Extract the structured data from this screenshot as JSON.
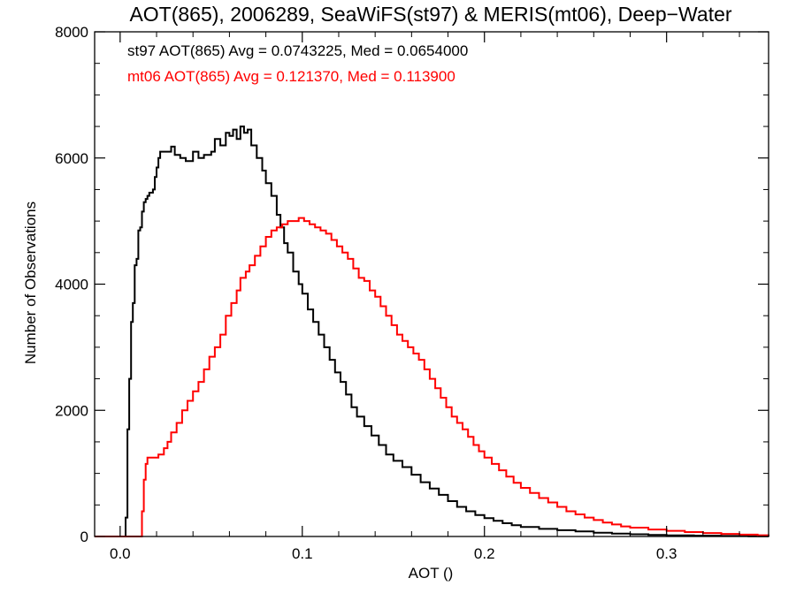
{
  "chart_data": {
    "type": "line",
    "title": "AOT(865), 2006289, SeaWiFS(st97) & MERIS(mt06), Deep−Water",
    "xlabel": "AOT ()",
    "ylabel": "Number of Observations",
    "xlim": [
      -0.014,
      0.356
    ],
    "ylim": [
      0,
      8000
    ],
    "grid": false,
    "xticks": [
      {
        "value": 0.0,
        "label": "0.0"
      },
      {
        "value": 0.1,
        "label": "0.1"
      },
      {
        "value": 0.2,
        "label": "0.2"
      },
      {
        "value": 0.3,
        "label": "0.3"
      }
    ],
    "yticks": [
      {
        "value": 0,
        "label": "0"
      },
      {
        "value": 2000,
        "label": "2000"
      },
      {
        "value": 4000,
        "label": "4000"
      },
      {
        "value": 6000,
        "label": "6000"
      },
      {
        "value": 8000,
        "label": "8000"
      }
    ],
    "annotations": [
      {
        "text": "st97 AOT(865) Avg = 0.0743225, Med = 0.0654000",
        "color": "#000000"
      },
      {
        "text": "mt06 AOT(865) Avg = 0.121370, Med = 0.113900",
        "color": "#ff0000"
      }
    ],
    "series": [
      {
        "color": "#000000",
        "style": "step",
        "points": [
          [
            -0.014,
            0
          ],
          [
            0.002,
            0
          ],
          [
            0.003,
            300
          ],
          [
            0.004,
            1700
          ],
          [
            0.005,
            2500
          ],
          [
            0.006,
            3400
          ],
          [
            0.007,
            3700
          ],
          [
            0.008,
            4300
          ],
          [
            0.009,
            4400
          ],
          [
            0.01,
            4850
          ],
          [
            0.011,
            4900
          ],
          [
            0.012,
            5150
          ],
          [
            0.013,
            5300
          ],
          [
            0.014,
            5350
          ],
          [
            0.015,
            5400
          ],
          [
            0.016,
            5450
          ],
          [
            0.018,
            5500
          ],
          [
            0.019,
            5700
          ],
          [
            0.02,
            5850
          ],
          [
            0.021,
            6000
          ],
          [
            0.022,
            6100
          ],
          [
            0.025,
            6100
          ],
          [
            0.028,
            6180
          ],
          [
            0.03,
            6050
          ],
          [
            0.033,
            6000
          ],
          [
            0.036,
            5950
          ],
          [
            0.04,
            6100
          ],
          [
            0.043,
            6000
          ],
          [
            0.046,
            6050
          ],
          [
            0.05,
            6100
          ],
          [
            0.052,
            6300
          ],
          [
            0.055,
            6200
          ],
          [
            0.058,
            6400
          ],
          [
            0.06,
            6350
          ],
          [
            0.062,
            6450
          ],
          [
            0.064,
            6300
          ],
          [
            0.066,
            6500
          ],
          [
            0.068,
            6400
          ],
          [
            0.07,
            6450
          ],
          [
            0.072,
            6200
          ],
          [
            0.075,
            6000
          ],
          [
            0.078,
            5800
          ],
          [
            0.08,
            5600
          ],
          [
            0.083,
            5400
          ],
          [
            0.086,
            5100
          ],
          [
            0.088,
            4900
          ],
          [
            0.09,
            4650
          ],
          [
            0.092,
            4500
          ],
          [
            0.095,
            4200
          ],
          [
            0.098,
            4000
          ],
          [
            0.1,
            3850
          ],
          [
            0.103,
            3600
          ],
          [
            0.106,
            3400
          ],
          [
            0.109,
            3200
          ],
          [
            0.112,
            3000
          ],
          [
            0.115,
            2800
          ],
          [
            0.118,
            2600
          ],
          [
            0.121,
            2450
          ],
          [
            0.124,
            2250
          ],
          [
            0.127,
            2050
          ],
          [
            0.13,
            1900
          ],
          [
            0.134,
            1750
          ],
          [
            0.138,
            1600
          ],
          [
            0.142,
            1450
          ],
          [
            0.146,
            1300
          ],
          [
            0.15,
            1200
          ],
          [
            0.155,
            1100
          ],
          [
            0.16,
            980
          ],
          [
            0.165,
            860
          ],
          [
            0.17,
            760
          ],
          [
            0.175,
            660
          ],
          [
            0.18,
            560
          ],
          [
            0.185,
            470
          ],
          [
            0.19,
            400
          ],
          [
            0.195,
            340
          ],
          [
            0.2,
            290
          ],
          [
            0.205,
            250
          ],
          [
            0.21,
            210
          ],
          [
            0.215,
            180
          ],
          [
            0.22,
            150
          ],
          [
            0.23,
            120
          ],
          [
            0.24,
            100
          ],
          [
            0.25,
            80
          ],
          [
            0.26,
            60
          ],
          [
            0.27,
            45
          ],
          [
            0.28,
            35
          ],
          [
            0.29,
            25
          ],
          [
            0.3,
            18
          ],
          [
            0.315,
            12
          ],
          [
            0.33,
            8
          ],
          [
            0.345,
            4
          ],
          [
            0.356,
            0
          ]
        ]
      },
      {
        "color": "#ff0000",
        "style": "step",
        "points": [
          [
            -0.014,
            0
          ],
          [
            0.011,
            0
          ],
          [
            0.012,
            400
          ],
          [
            0.013,
            900
          ],
          [
            0.014,
            1150
          ],
          [
            0.015,
            1250
          ],
          [
            0.018,
            1250
          ],
          [
            0.021,
            1300
          ],
          [
            0.024,
            1400
          ],
          [
            0.026,
            1500
          ],
          [
            0.028,
            1650
          ],
          [
            0.031,
            1800
          ],
          [
            0.034,
            2000
          ],
          [
            0.037,
            2150
          ],
          [
            0.04,
            2300
          ],
          [
            0.043,
            2450
          ],
          [
            0.046,
            2650
          ],
          [
            0.049,
            2850
          ],
          [
            0.052,
            3000
          ],
          [
            0.055,
            3200
          ],
          [
            0.058,
            3500
          ],
          [
            0.061,
            3700
          ],
          [
            0.064,
            3900
          ],
          [
            0.066,
            4100
          ],
          [
            0.069,
            4200
          ],
          [
            0.071,
            4300
          ],
          [
            0.074,
            4450
          ],
          [
            0.077,
            4600
          ],
          [
            0.08,
            4750
          ],
          [
            0.083,
            4850
          ],
          [
            0.086,
            4900
          ],
          [
            0.089,
            4950
          ],
          [
            0.092,
            5000
          ],
          [
            0.095,
            5000
          ],
          [
            0.098,
            5050
          ],
          [
            0.101,
            5000
          ],
          [
            0.104,
            4950
          ],
          [
            0.107,
            4900
          ],
          [
            0.11,
            4850
          ],
          [
            0.113,
            4800
          ],
          [
            0.116,
            4700
          ],
          [
            0.119,
            4600
          ],
          [
            0.122,
            4500
          ],
          [
            0.125,
            4400
          ],
          [
            0.128,
            4250
          ],
          [
            0.131,
            4100
          ],
          [
            0.134,
            4050
          ],
          [
            0.137,
            3900
          ],
          [
            0.14,
            3800
          ],
          [
            0.143,
            3650
          ],
          [
            0.146,
            3500
          ],
          [
            0.149,
            3350
          ],
          [
            0.152,
            3200
          ],
          [
            0.155,
            3100
          ],
          [
            0.158,
            3000
          ],
          [
            0.161,
            2900
          ],
          [
            0.164,
            2800
          ],
          [
            0.167,
            2650
          ],
          [
            0.17,
            2500
          ],
          [
            0.173,
            2350
          ],
          [
            0.176,
            2200
          ],
          [
            0.179,
            2050
          ],
          [
            0.182,
            1900
          ],
          [
            0.185,
            1800
          ],
          [
            0.188,
            1700
          ],
          [
            0.191,
            1580
          ],
          [
            0.194,
            1450
          ],
          [
            0.197,
            1350
          ],
          [
            0.2,
            1250
          ],
          [
            0.204,
            1150
          ],
          [
            0.208,
            1050
          ],
          [
            0.212,
            950
          ],
          [
            0.216,
            850
          ],
          [
            0.22,
            770
          ],
          [
            0.225,
            690
          ],
          [
            0.23,
            610
          ],
          [
            0.235,
            540
          ],
          [
            0.24,
            470
          ],
          [
            0.245,
            400
          ],
          [
            0.25,
            350
          ],
          [
            0.255,
            300
          ],
          [
            0.26,
            260
          ],
          [
            0.265,
            220
          ],
          [
            0.27,
            190
          ],
          [
            0.275,
            160
          ],
          [
            0.28,
            140
          ],
          [
            0.29,
            110
          ],
          [
            0.3,
            90
          ],
          [
            0.31,
            70
          ],
          [
            0.32,
            55
          ],
          [
            0.33,
            40
          ],
          [
            0.34,
            30
          ],
          [
            0.35,
            20
          ],
          [
            0.356,
            15
          ]
        ]
      }
    ]
  }
}
